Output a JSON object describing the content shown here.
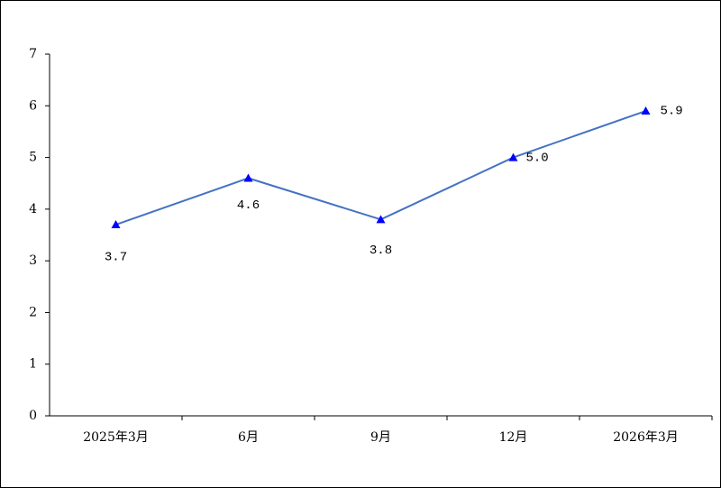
{
  "chart_data": {
    "type": "line",
    "categories": [
      "2025年3月",
      "6月",
      "9月",
      "12月",
      "2026年3月"
    ],
    "values": [
      3.7,
      4.6,
      3.8,
      5,
      5.9
    ],
    "value_labels": [
      "3.7",
      "4.6",
      "3.8",
      "5.0",
      "5.9"
    ],
    "color": "#4472c4",
    "marker_color": "#0000ff",
    "ylim": [
      0,
      7
    ],
    "yticks": [
      0,
      1,
      2,
      3,
      4,
      5,
      6,
      7
    ],
    "grid": false
  }
}
